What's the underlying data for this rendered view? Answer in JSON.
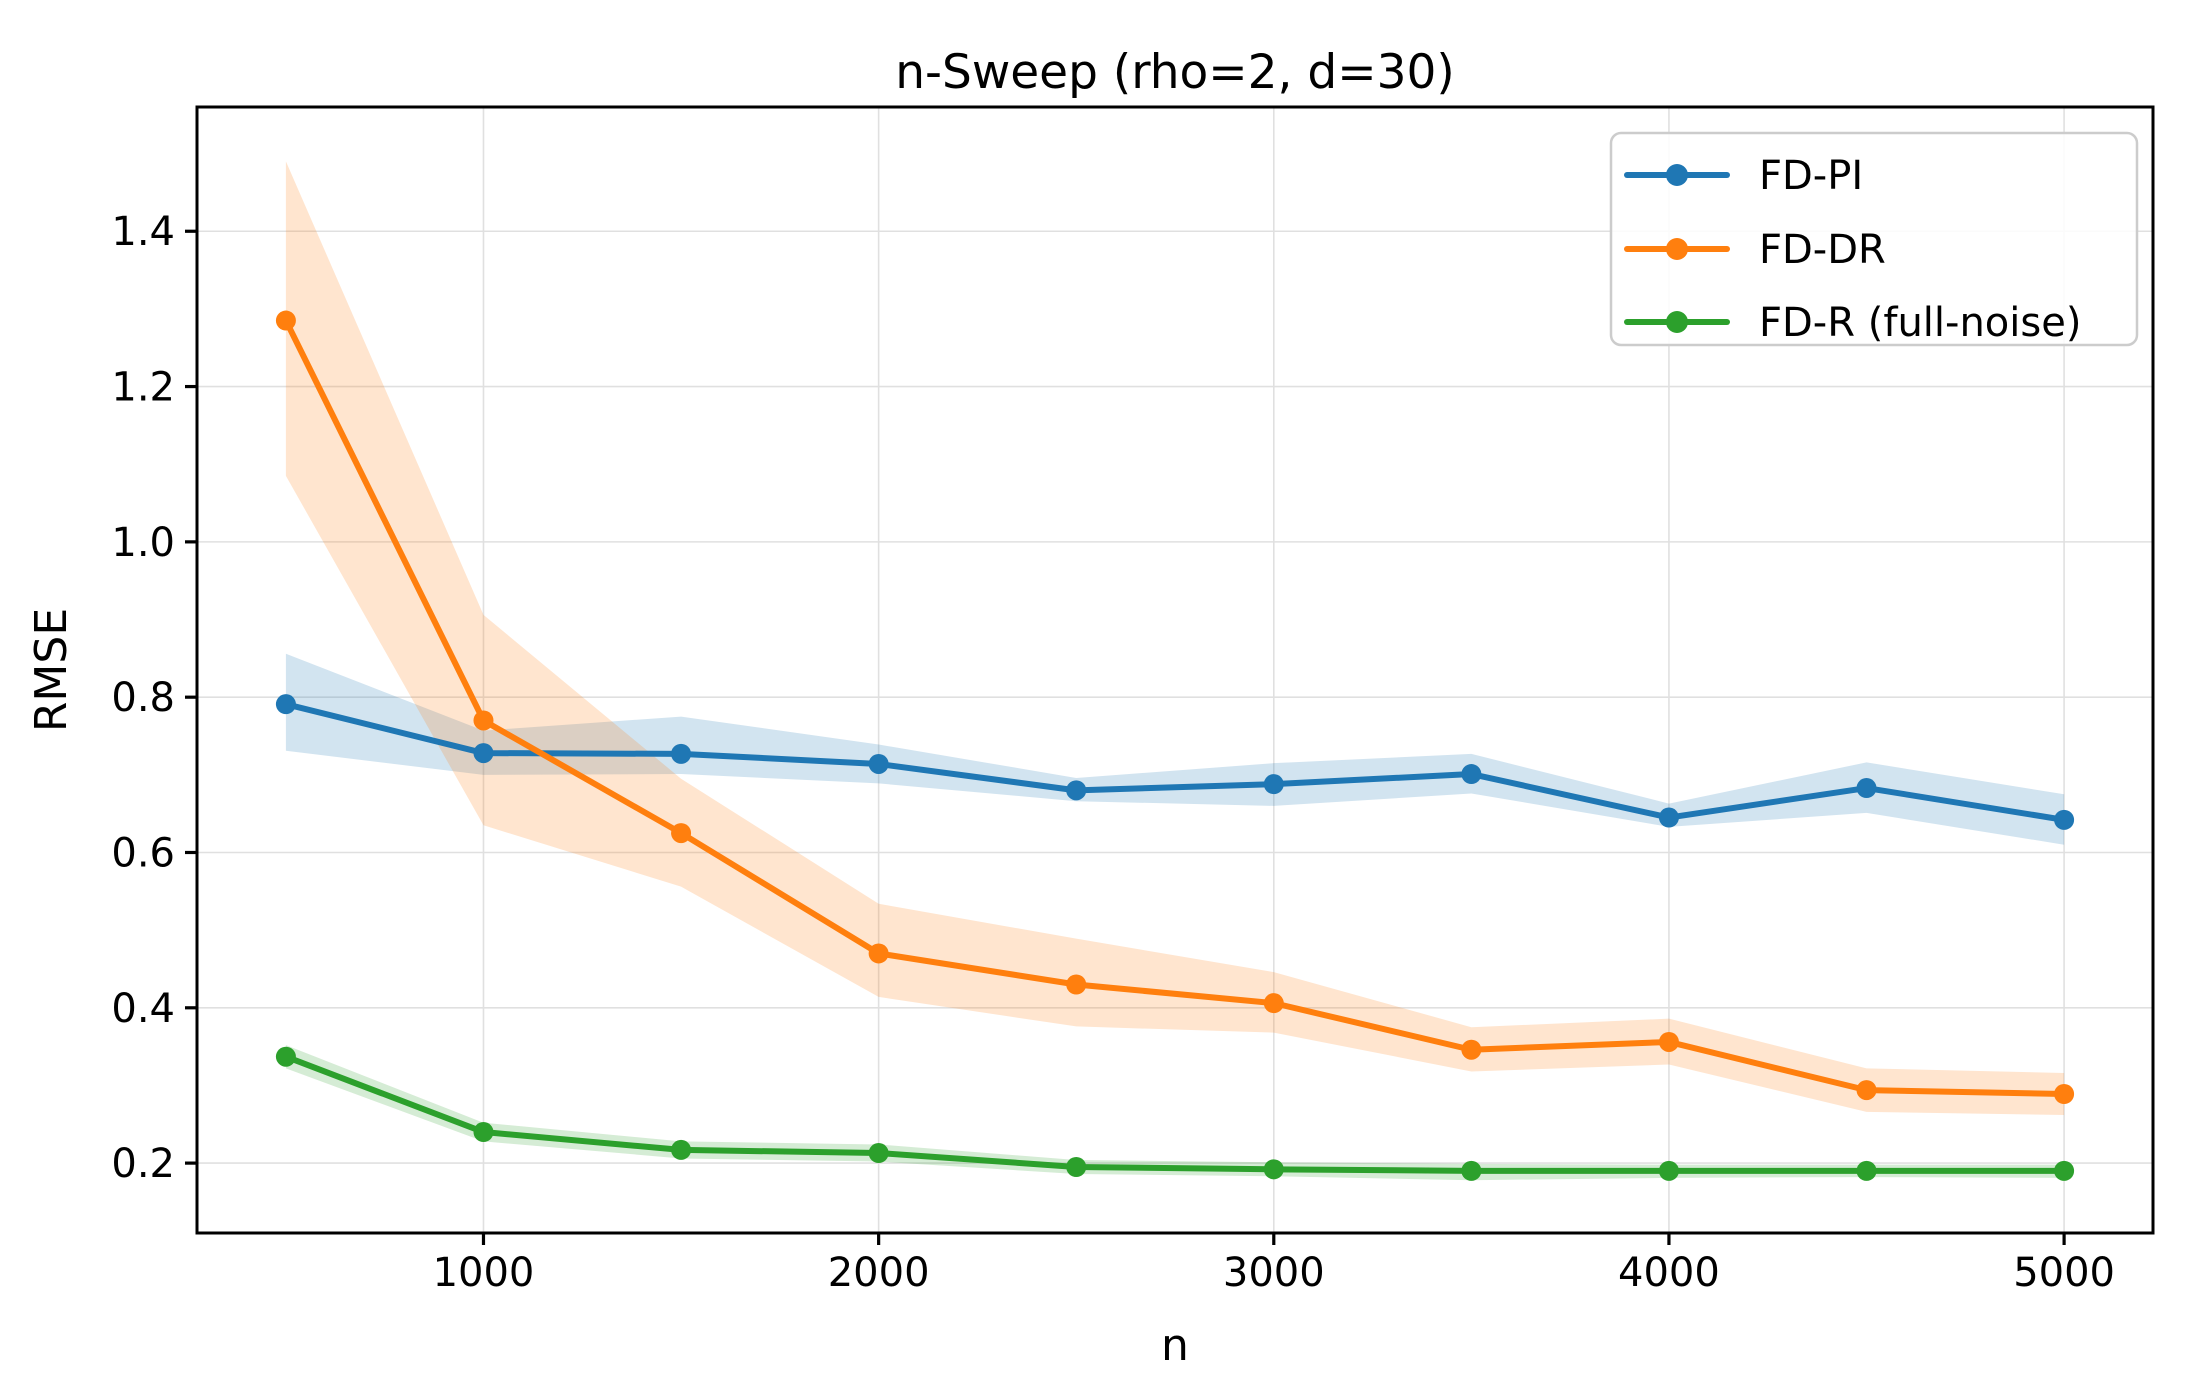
{
  "chart_data": {
    "type": "line",
    "title": "n-Sweep (rho=2, d=30)",
    "xlabel": "n",
    "ylabel": "RMSE",
    "grid": true,
    "legend_position": "upper right",
    "xlim": [
      275,
      5225
    ],
    "ylim": [
      0.11,
      1.56
    ],
    "x_ticks": [
      1000,
      2000,
      3000,
      4000,
      5000
    ],
    "x_tick_labels": [
      "1000",
      "2000",
      "3000",
      "4000",
      "5000"
    ],
    "y_ticks": [
      0.2,
      0.4,
      0.6,
      0.8,
      1.0,
      1.2,
      1.4
    ],
    "y_tick_labels": [
      "0.2",
      "0.4",
      "0.6",
      "0.8",
      "1.0",
      "1.2",
      "1.4"
    ],
    "x": [
      500,
      1000,
      1500,
      2000,
      2500,
      3000,
      3500,
      4000,
      4500,
      5000
    ],
    "band_alpha": 0.2,
    "grid_color": "#e0e0e0",
    "spine_color": "#000000",
    "legend_border_color": "#cccccc",
    "series": [
      {
        "name": "FD-PI",
        "color": "#1f77b4",
        "values": [
          0.791,
          0.728,
          0.727,
          0.714,
          0.68,
          0.688,
          0.701,
          0.645,
          0.683,
          0.642
        ],
        "band_low": [
          0.731,
          0.7,
          0.701,
          0.689,
          0.666,
          0.66,
          0.676,
          0.633,
          0.651,
          0.61
        ],
        "band_high": [
          0.856,
          0.757,
          0.775,
          0.739,
          0.696,
          0.715,
          0.727,
          0.663,
          0.716,
          0.675
        ]
      },
      {
        "name": "FD-DR",
        "color": "#ff7f0e",
        "values": [
          1.285,
          0.77,
          0.625,
          0.47,
          0.43,
          0.406,
          0.346,
          0.356,
          0.294,
          0.289
        ],
        "band_low": [
          1.085,
          0.635,
          0.556,
          0.414,
          0.376,
          0.368,
          0.318,
          0.327,
          0.266,
          0.262
        ],
        "band_high": [
          1.49,
          0.906,
          0.695,
          0.534,
          0.489,
          0.446,
          0.375,
          0.386,
          0.322,
          0.316
        ]
      },
      {
        "name": "FD-R (full-noise)",
        "color": "#2ca02c",
        "values": [
          0.337,
          0.24,
          0.217,
          0.213,
          0.195,
          0.192,
          0.19,
          0.19,
          0.19,
          0.19
        ],
        "band_low": [
          0.322,
          0.228,
          0.206,
          0.202,
          0.186,
          0.183,
          0.178,
          0.181,
          0.182,
          0.181
        ],
        "band_high": [
          0.352,
          0.252,
          0.228,
          0.224,
          0.204,
          0.201,
          0.199,
          0.198,
          0.198,
          0.198
        ]
      }
    ]
  }
}
